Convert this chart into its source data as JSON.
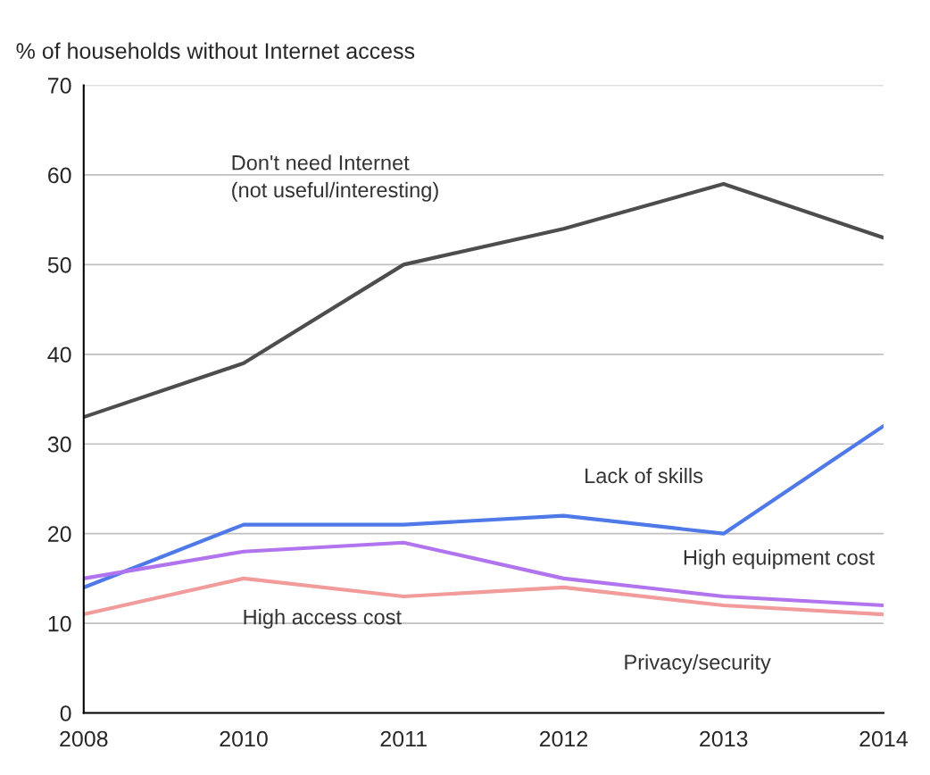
{
  "chart_data": {
    "type": "line",
    "ylabel": "% of households without Internet access",
    "categories": [
      "2008",
      "2010",
      "2011",
      "2012",
      "2013",
      "2014"
    ],
    "series": [
      {
        "name": "Don't need Internet\n(not useful/interesting)",
        "color": "#4d4d4d",
        "values": [
          33,
          39,
          50,
          54,
          59,
          53
        ]
      },
      {
        "name": "Lack of skills",
        "color": "#4f79e8",
        "values": [
          14,
          21,
          21,
          22,
          20,
          32
        ]
      },
      {
        "name": "High equipment cost",
        "color": "#b273ee",
        "values": [
          15,
          18,
          19,
          15,
          13,
          12
        ]
      },
      {
        "name": "High access cost",
        "color": "#f29b9b",
        "values": [
          11,
          15,
          13,
          14,
          12,
          11
        ]
      }
    ],
    "ylim": [
      0,
      70
    ],
    "yticks": [
      0,
      10,
      20,
      30,
      40,
      50,
      60,
      70
    ],
    "grid": "y",
    "legend": false,
    "marker": "none",
    "line_style": "solid",
    "annotations": [
      "Privacy/security"
    ]
  }
}
